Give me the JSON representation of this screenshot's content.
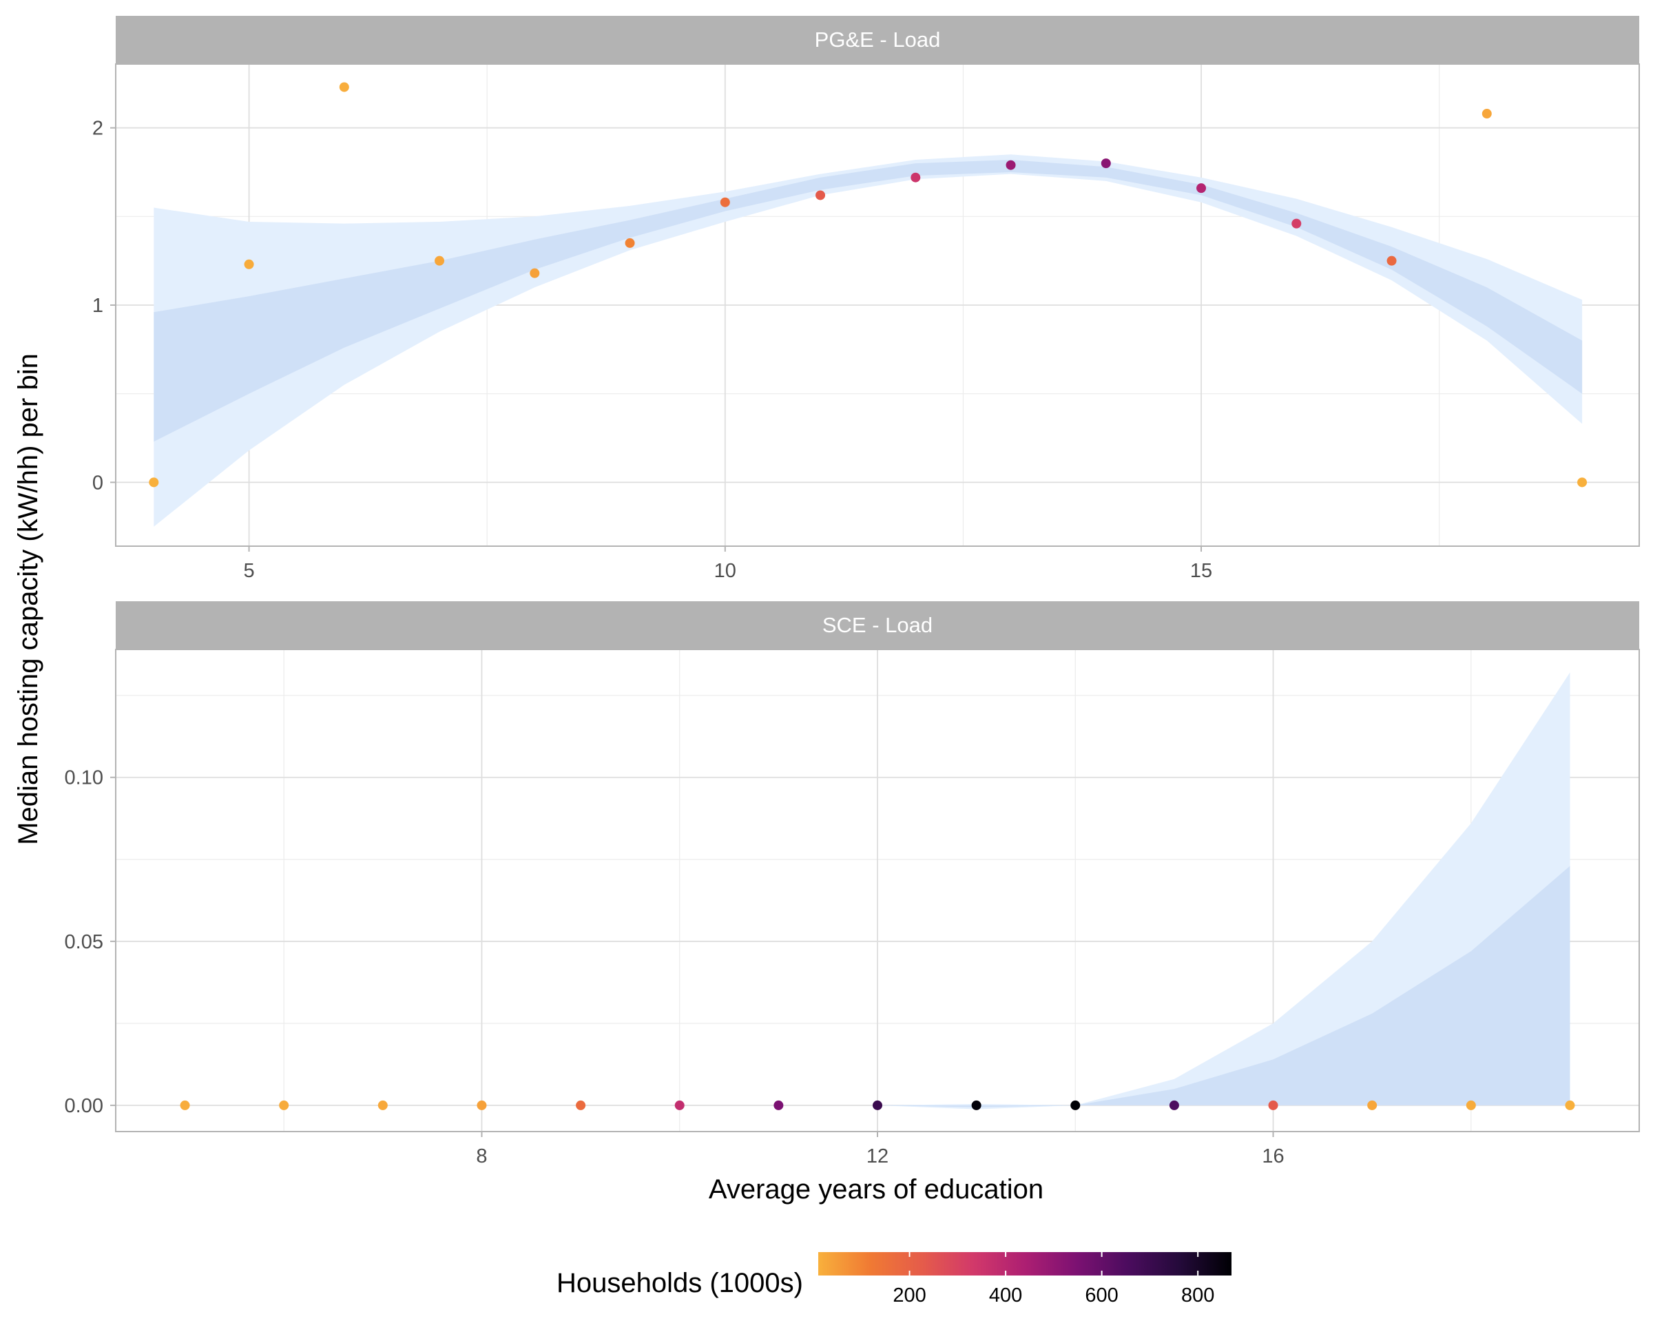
{
  "chart_data": {
    "type": "scatter",
    "ylabel": "Median hosting capacity (kW/hh) per bin",
    "xlabel": "Average years of education",
    "panels": [
      {
        "strip": "PG&E - Load",
        "xlim": [
          3.6,
          19.6
        ],
        "ylim": [
          -0.36,
          2.36
        ],
        "x_ticks": [
          5,
          10,
          15
        ],
        "y_ticks": [
          0,
          1,
          2
        ],
        "points": [
          {
            "x": 4,
            "y": 0.0,
            "households": 10
          },
          {
            "x": 5,
            "y": 1.23,
            "households": 20
          },
          {
            "x": 6,
            "y": 2.23,
            "households": 15
          },
          {
            "x": 7,
            "y": 1.25,
            "households": 30
          },
          {
            "x": 8,
            "y": 1.18,
            "households": 40
          },
          {
            "x": 9,
            "y": 1.35,
            "households": 100
          },
          {
            "x": 10,
            "y": 1.58,
            "households": 160
          },
          {
            "x": 11,
            "y": 1.62,
            "households": 230
          },
          {
            "x": 12,
            "y": 1.72,
            "households": 350
          },
          {
            "x": 13,
            "y": 1.79,
            "households": 480
          },
          {
            "x": 14,
            "y": 1.8,
            "households": 520
          },
          {
            "x": 15,
            "y": 1.66,
            "households": 420
          },
          {
            "x": 16,
            "y": 1.46,
            "households": 320
          },
          {
            "x": 17,
            "y": 1.25,
            "households": 180
          },
          {
            "x": 18,
            "y": 2.08,
            "households": 30
          },
          {
            "x": 19,
            "y": 0.0,
            "households": 10
          }
        ],
        "fit_x": [
          4,
          5,
          6,
          7,
          8,
          9,
          10,
          11,
          12,
          13,
          14,
          15,
          16,
          17,
          18,
          19
        ],
        "inner_band": {
          "lower": [
            0.23,
            0.5,
            0.76,
            0.98,
            1.2,
            1.38,
            1.53,
            1.65,
            1.73,
            1.75,
            1.72,
            1.62,
            1.44,
            1.2,
            0.88,
            0.5
          ],
          "upper": [
            0.96,
            1.05,
            1.15,
            1.25,
            1.37,
            1.48,
            1.6,
            1.72,
            1.8,
            1.82,
            1.78,
            1.68,
            1.52,
            1.33,
            1.1,
            0.8
          ]
        },
        "outer_band": {
          "lower": [
            -0.25,
            0.18,
            0.55,
            0.85,
            1.1,
            1.31,
            1.47,
            1.62,
            1.71,
            1.74,
            1.7,
            1.58,
            1.39,
            1.14,
            0.8,
            0.33
          ],
          "upper": [
            1.55,
            1.47,
            1.46,
            1.47,
            1.5,
            1.56,
            1.64,
            1.74,
            1.82,
            1.85,
            1.81,
            1.72,
            1.6,
            1.44,
            1.26,
            1.03
          ]
        }
      },
      {
        "strip": "SCE - Load",
        "xlim": [
          4.3,
          19.7
        ],
        "ylim": [
          -0.008,
          0.139
        ],
        "x_ticks": [
          8,
          12,
          16
        ],
        "y_ticks": [
          0.0,
          0.05,
          0.1
        ],
        "y_tick_labels": [
          "0.00",
          "0.05",
          "0.10"
        ],
        "points": [
          {
            "x": 5,
            "y": 0.0,
            "households": 15
          },
          {
            "x": 6,
            "y": 0.0,
            "households": 20
          },
          {
            "x": 7,
            "y": 0.0,
            "households": 25
          },
          {
            "x": 8,
            "y": 0.0,
            "households": 40
          },
          {
            "x": 9,
            "y": 0.0,
            "households": 170
          },
          {
            "x": 10,
            "y": 0.0,
            "households": 380
          },
          {
            "x": 11,
            "y": 0.0,
            "households": 550
          },
          {
            "x": 12,
            "y": 0.0,
            "households": 700
          },
          {
            "x": 13,
            "y": 0.0,
            "households": 860
          },
          {
            "x": 14,
            "y": 0.0,
            "households": 870
          },
          {
            "x": 15,
            "y": 0.0,
            "households": 650
          },
          {
            "x": 16,
            "y": 0.0,
            "households": 230
          },
          {
            "x": 17,
            "y": 0.0,
            "households": 30
          },
          {
            "x": 18,
            "y": 0.0,
            "households": 20
          },
          {
            "x": 19,
            "y": 0.0,
            "households": 10
          }
        ],
        "fit_x": [
          12,
          13,
          14,
          15,
          16,
          17,
          18,
          19
        ],
        "inner_band": {
          "lower": [
            0.0,
            -0.0006,
            0.0,
            0.0,
            0.0,
            0.0,
            0.0,
            0.0
          ],
          "upper": [
            0.0,
            0.0,
            0.0,
            0.005,
            0.014,
            0.028,
            0.047,
            0.073
          ]
        },
        "outer_band": {
          "lower": [
            0.0,
            -0.0012,
            0.0,
            0.0,
            0.0,
            0.0,
            0.0,
            0.0
          ],
          "upper": [
            0.0,
            0.0004,
            0.0,
            0.008,
            0.025,
            0.05,
            0.086,
            0.132
          ]
        }
      }
    ],
    "legend": {
      "title": "Households (1000s)",
      "placement": "bottom",
      "range": [
        10,
        870
      ],
      "ticks": [
        200,
        400,
        600,
        800
      ],
      "colors": [
        "#f8b03c",
        "#f07a33",
        "#e55c4a",
        "#d2396a",
        "#ad1f72",
        "#7c1172",
        "#4b0c5e",
        "#240a3a",
        "#000004"
      ]
    },
    "grid": true,
    "band_inner_color": "#cfe0f7",
    "band_outer_color": "#e3effd",
    "strip_color": "#b3b3b3"
  }
}
